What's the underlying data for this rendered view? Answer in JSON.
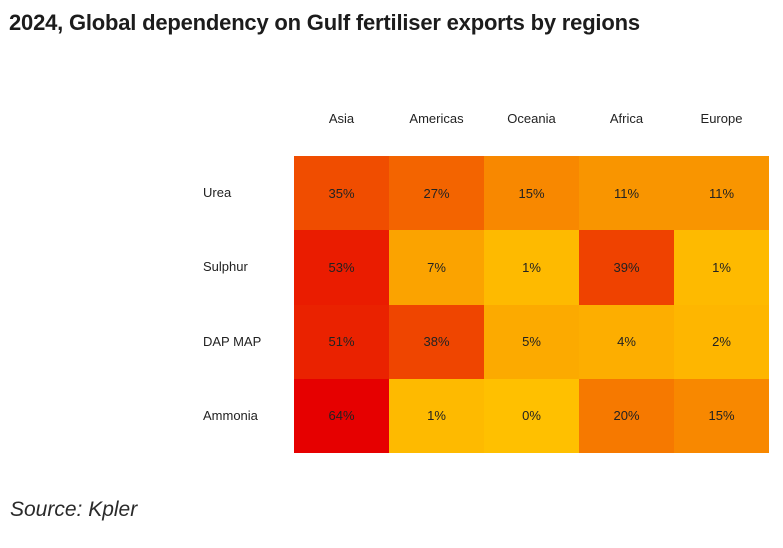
{
  "chart_data": {
    "type": "heatmap",
    "title": "2024, Global dependency on Gulf fertiliser exports by regions",
    "columns": [
      "Asia",
      "Americas",
      "Oceania",
      "Africa",
      "Europe"
    ],
    "rows": [
      "Urea",
      "Sulphur",
      "DAP MAP",
      "Ammonia"
    ],
    "values": [
      [
        35,
        27,
        15,
        11,
        11
      ],
      [
        53,
        7,
        1,
        39,
        1
      ],
      [
        51,
        38,
        5,
        4,
        2
      ],
      [
        64,
        1,
        0,
        20,
        15
      ]
    ],
    "labels": [
      [
        "35%",
        "27%",
        "15%",
        "11%",
        "11%"
      ],
      [
        "53%",
        "7%",
        "1%",
        "39%",
        "1%"
      ],
      [
        "51%",
        "38%",
        "5%",
        "4%",
        "2%"
      ],
      [
        "64%",
        "1%",
        "0%",
        "20%",
        "15%"
      ]
    ],
    "unit": "%",
    "colors": {
      "low": "#FFC000",
      "high": "#E60000"
    }
  },
  "source": "Source: Kpler"
}
